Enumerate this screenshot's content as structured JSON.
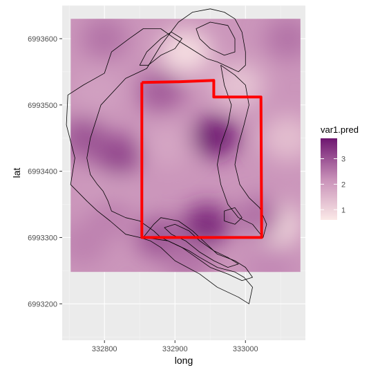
{
  "chart_data": {
    "type": "heatmap",
    "xlabel": "long",
    "ylabel": "lat",
    "xlim": [
      332740,
      333085
    ],
    "ylim": [
      6993145,
      6993650
    ],
    "x_ticks": [
      332800,
      332900,
      333000
    ],
    "x_tick_labels": [
      "332800",
      "332900",
      "333000"
    ],
    "y_ticks": [
      6993200,
      6993300,
      6993400,
      6993500,
      6993600
    ],
    "y_tick_labels": [
      "6993200",
      "6993300",
      "6993400",
      "6993500",
      "6993600"
    ],
    "grid": true,
    "raster_extent": {
      "x": [
        332752,
        333078
      ],
      "y": [
        6993248,
        6993630
      ]
    },
    "fill": {
      "name": "var1.pred",
      "range": [
        0.6,
        3.8
      ],
      "breaks": [
        1,
        2,
        3
      ],
      "break_labels": [
        "1",
        "2",
        "3"
      ],
      "low_color": "#fbe9e7",
      "mid_color": "#c890b8",
      "high_color": "#6e1670",
      "legend_position": "right"
    },
    "surface_hotspots": [
      {
        "x": 332957,
        "y": 6993452,
        "value": 3.8
      },
      {
        "x": 332945,
        "y": 6993320,
        "value": 3.6
      },
      {
        "x": 332820,
        "y": 6993425,
        "value": 3.2
      },
      {
        "x": 332770,
        "y": 6993450,
        "value": 3.0
      },
      {
        "x": 332878,
        "y": 6993300,
        "value": 3.0
      },
      {
        "x": 333020,
        "y": 6993330,
        "value": 2.7
      },
      {
        "x": 332880,
        "y": 6993520,
        "value": 2.9
      },
      {
        "x": 332810,
        "y": 6993330,
        "value": 2.4
      },
      {
        "x": 333060,
        "y": 6993600,
        "value": 2.6
      },
      {
        "x": 332770,
        "y": 6993290,
        "value": 2.4
      },
      {
        "x": 332800,
        "y": 6993600,
        "value": 2.6
      },
      {
        "x": 332920,
        "y": 6993265,
        "value": 2.6
      },
      {
        "x": 333035,
        "y": 6993260,
        "value": 2.3
      }
    ],
    "surface_lows": [
      {
        "x": 332915,
        "y": 6993580,
        "value": 0.7
      },
      {
        "x": 333040,
        "y": 6993320,
        "value": 0.6
      },
      {
        "x": 333060,
        "y": 6993450,
        "value": 1.3
      },
      {
        "x": 332990,
        "y": 6993530,
        "value": 1.2
      },
      {
        "x": 332890,
        "y": 6993440,
        "value": 1.8
      },
      {
        "x": 332790,
        "y": 6993520,
        "value": 1.9
      },
      {
        "x": 332810,
        "y": 6993360,
        "value": 1.9
      }
    ],
    "outline_polygons": [
      {
        "color": "#000000",
        "points": [
          [
            332835,
            6993600
          ],
          [
            332810,
            6993580
          ],
          [
            332800,
            6993548
          ],
          [
            332770,
            6993530
          ],
          [
            332748,
            6993515
          ],
          [
            332746,
            6993470
          ],
          [
            332758,
            6993420
          ],
          [
            332752,
            6993380
          ],
          [
            332775,
            6993355
          ],
          [
            332790,
            6993340
          ],
          [
            332808,
            6993325
          ],
          [
            332830,
            6993305
          ],
          [
            332850,
            6993300
          ],
          [
            332865,
            6993295
          ],
          [
            332880,
            6993285
          ],
          [
            332900,
            6993265
          ],
          [
            332935,
            6993245
          ],
          [
            332960,
            6993225
          ],
          [
            332990,
            6993210
          ],
          [
            333005,
            6993200
          ],
          [
            333010,
            6993225
          ],
          [
            332998,
            6993240
          ],
          [
            332985,
            6993248
          ],
          [
            332960,
            6993255
          ],
          [
            332935,
            6993270
          ],
          [
            332920,
            6993280
          ],
          [
            332900,
            6993290
          ],
          [
            332880,
            6993300
          ],
          [
            332870,
            6993310
          ],
          [
            332850,
            6993325
          ],
          [
            332830,
            6993330
          ],
          [
            332810,
            6993340
          ],
          [
            332805,
            6993355
          ],
          [
            332798,
            6993370
          ],
          [
            332790,
            6993380
          ],
          [
            332780,
            6993395
          ],
          [
            332775,
            6993420
          ],
          [
            332780,
            6993450
          ],
          [
            332795,
            6993500
          ],
          [
            332830,
            6993540
          ],
          [
            332860,
            6993555
          ],
          [
            332880,
            6993590
          ],
          [
            332905,
            6993625
          ],
          [
            332925,
            6993640
          ],
          [
            332950,
            6993645
          ],
          [
            332970,
            6993640
          ],
          [
            332985,
            6993630
          ],
          [
            332995,
            6993610
          ],
          [
            333000,
            6993580
          ],
          [
            333000,
            6993560
          ],
          [
            332990,
            6993550
          ],
          [
            332980,
            6993555
          ],
          [
            332960,
            6993565
          ],
          [
            332945,
            6993570
          ],
          [
            332930,
            6993580
          ],
          [
            332915,
            6993590
          ],
          [
            332900,
            6993600
          ],
          [
            332880,
            6993615
          ],
          [
            332855,
            6993615
          ],
          [
            332835,
            6993600
          ]
        ]
      },
      {
        "color": "#000000",
        "points": [
          [
            332850,
            6993560
          ],
          [
            332860,
            6993580
          ],
          [
            332880,
            6993600
          ],
          [
            332895,
            6993610
          ],
          [
            332910,
            6993600
          ],
          [
            332900,
            6993585
          ],
          [
            332880,
            6993575
          ],
          [
            332862,
            6993560
          ],
          [
            332850,
            6993560
          ]
        ]
      },
      {
        "color": "#000000",
        "points": [
          [
            332930,
            6993615
          ],
          [
            332950,
            6993625
          ],
          [
            332975,
            6993620
          ],
          [
            332985,
            6993600
          ],
          [
            332985,
            6993580
          ],
          [
            332970,
            6993575
          ],
          [
            332950,
            6993585
          ],
          [
            332935,
            6993600
          ],
          [
            332930,
            6993615
          ]
        ]
      },
      {
        "color": "#000000",
        "points": [
          [
            332855,
            6993300
          ],
          [
            332870,
            6993320
          ],
          [
            332880,
            6993330
          ],
          [
            332905,
            6993325
          ],
          [
            332925,
            6993310
          ],
          [
            332945,
            6993290
          ],
          [
            332960,
            6993275
          ],
          [
            332985,
            6993265
          ],
          [
            333000,
            6993255
          ],
          [
            333010,
            6993240
          ],
          [
            332995,
            6993235
          ],
          [
            332975,
            6993245
          ],
          [
            332950,
            6993255
          ],
          [
            332930,
            6993270
          ],
          [
            332910,
            6993285
          ],
          [
            332890,
            6993295
          ],
          [
            332870,
            6993298
          ],
          [
            332855,
            6993300
          ]
        ]
      },
      {
        "color": "#000000",
        "points": [
          [
            332885,
            6993315
          ],
          [
            332900,
            6993320
          ],
          [
            332920,
            6993310
          ],
          [
            332935,
            6993295
          ],
          [
            332955,
            6993280
          ],
          [
            332975,
            6993270
          ],
          [
            332990,
            6993260
          ],
          [
            332975,
            6993255
          ],
          [
            332955,
            6993265
          ],
          [
            332935,
            6993278
          ],
          [
            332915,
            6993295
          ],
          [
            332895,
            6993305
          ],
          [
            332885,
            6993315
          ]
        ]
      },
      {
        "color": "#000000",
        "points": [
          [
            332970,
            6993340
          ],
          [
            332985,
            6993345
          ],
          [
            332995,
            6993330
          ],
          [
            332985,
            6993320
          ],
          [
            332970,
            6993325
          ],
          [
            332970,
            6993340
          ]
        ]
      },
      {
        "color": "#000000",
        "points": [
          [
            332965,
            6993560
          ],
          [
            332970,
            6993530
          ],
          [
            332980,
            6993500
          ],
          [
            332975,
            6993470
          ],
          [
            332965,
            6993440
          ],
          [
            332960,
            6993410
          ],
          [
            332965,
            6993380
          ],
          [
            332975,
            6993350
          ],
          [
            332990,
            6993330
          ],
          [
            333010,
            6993320
          ],
          [
            333025,
            6993300
          ],
          [
            333030,
            6993320
          ],
          [
            333020,
            6993345
          ],
          [
            333005,
            6993360
          ],
          [
            332992,
            6993380
          ],
          [
            332985,
            6993410
          ],
          [
            332990,
            6993440
          ],
          [
            332998,
            6993470
          ],
          [
            333005,
            6993500
          ],
          [
            333000,
            6993530
          ],
          [
            332985,
            6993545
          ],
          [
            332965,
            6993560
          ]
        ]
      }
    ],
    "highlight_region": {
      "color": "#ff0000",
      "points": [
        [
          332853,
          6993534
        ],
        [
          332905,
          6993535
        ],
        [
          332955,
          6993537
        ],
        [
          332955,
          6993512
        ],
        [
          333022,
          6993512
        ],
        [
          333023,
          6993300
        ],
        [
          332853,
          6993300
        ],
        [
          332853,
          6993534
        ]
      ]
    }
  }
}
